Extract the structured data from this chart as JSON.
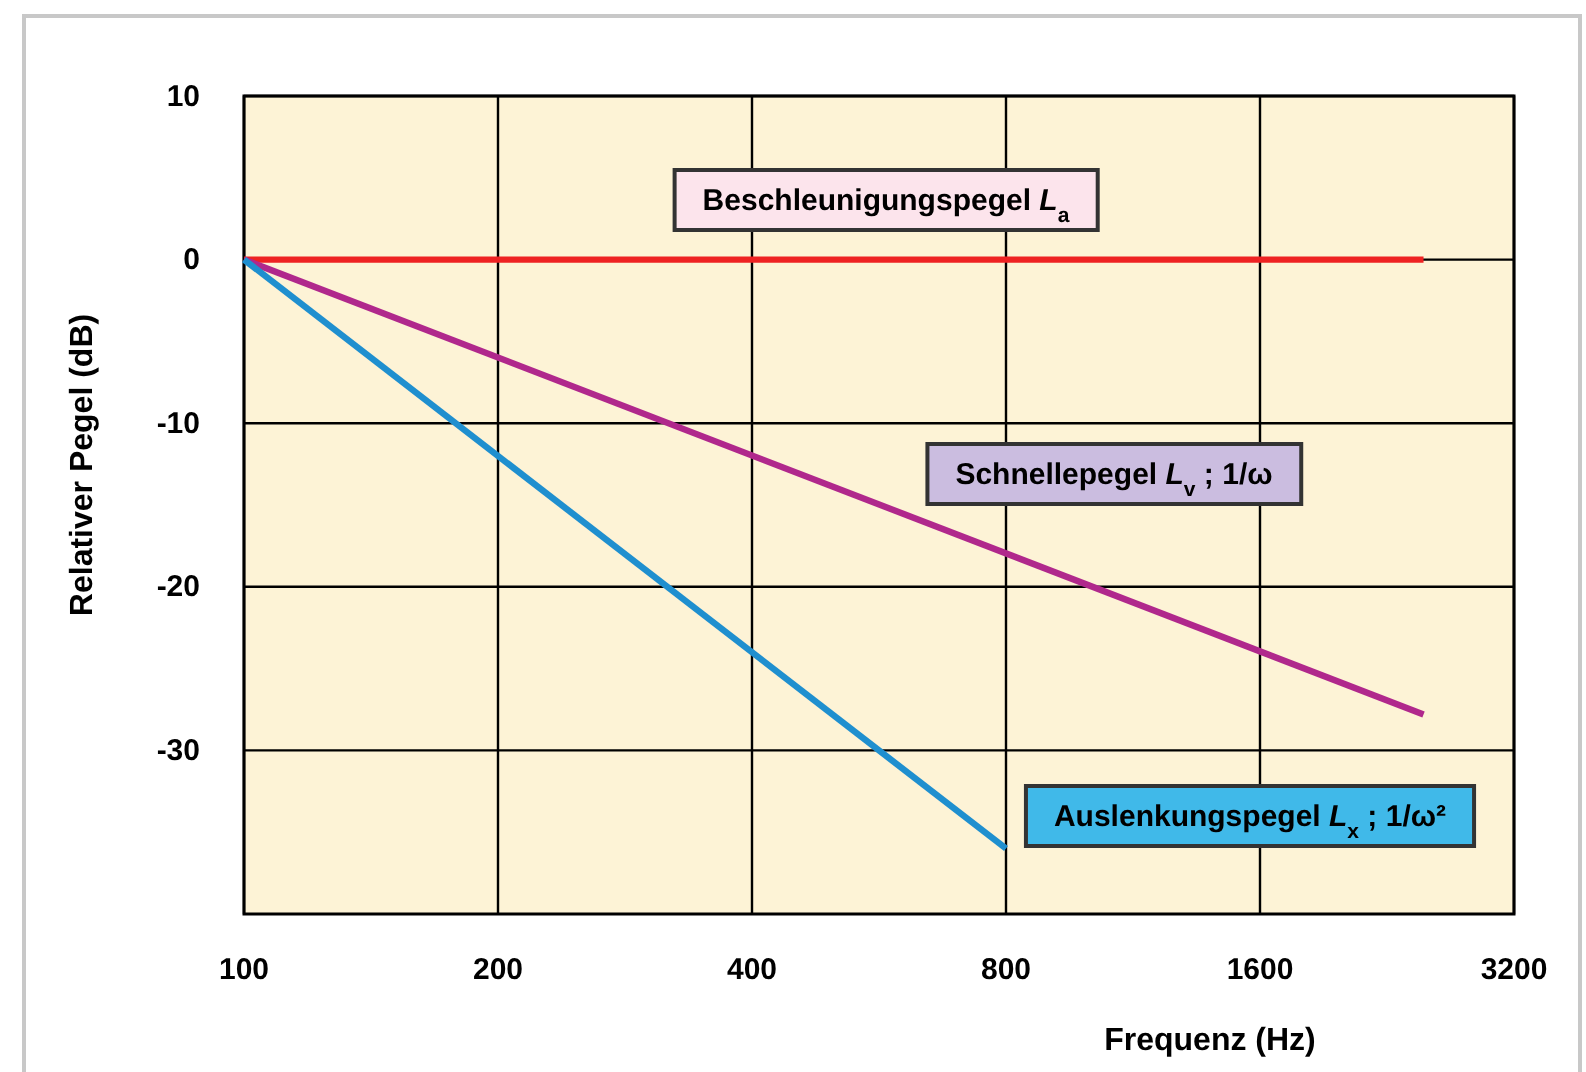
{
  "chart_data": {
    "type": "line",
    "xlabel": "Frequenz (Hz)",
    "ylabel": "Relativer Pegel (dB)",
    "log": "x",
    "xlim": [
      100,
      3200
    ],
    "xticks": [
      100,
      200,
      400,
      800,
      1600,
      3200
    ],
    "ylim": [
      -40,
      10
    ],
    "yticks": [
      10,
      0,
      -10,
      -20,
      -30
    ],
    "grid": true,
    "legend": false,
    "marker": "none",
    "line_style": "solid",
    "series": [
      {
        "name": "Beschleunigungspegel L$_{a}$",
        "color": "#ee2222",
        "x": [
          100,
          2500
        ],
        "values": [
          0,
          0
        ]
      },
      {
        "name": "Schnellepegel L$_{v}$ ;  1/ω",
        "color": "#b0288c",
        "x": [
          100,
          2500
        ],
        "values": [
          0,
          -27.8
        ]
      },
      {
        "name": "Auslenkungspegel L$_{x}$ ; 1/ω²",
        "color": "#1f8fcf",
        "x": [
          100,
          800
        ],
        "values": [
          0,
          -36
        ]
      }
    ]
  }
}
